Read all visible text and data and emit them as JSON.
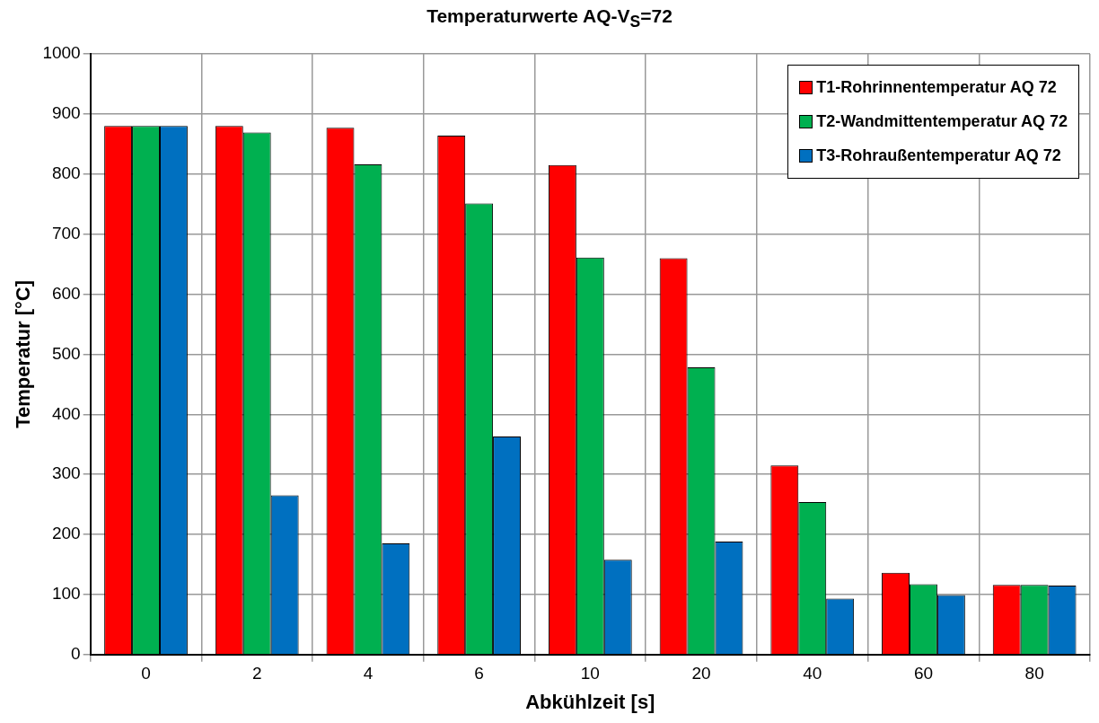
{
  "chart_data": {
    "type": "bar",
    "title": "Temperaturwerte AQ-V$_{S}$=72",
    "xlabel": "Abkühlzeit [s]",
    "ylabel": "Temperatur [°C]",
    "categories": [
      "0",
      "2",
      "4",
      "6",
      "10",
      "20",
      "40",
      "60",
      "80"
    ],
    "series": [
      {
        "name": "T1-Rohrinnentemperatur AQ 72",
        "color": "#ff0000",
        "values": [
          880,
          880,
          877,
          864,
          815,
          660,
          315,
          136,
          116
        ]
      },
      {
        "name": "T2-Wandmittentemperatur AQ 72",
        "color": "#00b050",
        "values": [
          880,
          869,
          816,
          751,
          661,
          478,
          254,
          117,
          116
        ]
      },
      {
        "name": "T3-Rohraußentemperatur AQ 72",
        "color": "#0070c0",
        "values": [
          880,
          265,
          185,
          363,
          158,
          188,
          93,
          99,
          115
        ]
      }
    ],
    "ylim": [
      0,
      1000
    ],
    "yticks": [
      0,
      100,
      200,
      300,
      400,
      500,
      600,
      700,
      800,
      900,
      1000
    ],
    "grid": true,
    "legend": "top right"
  }
}
